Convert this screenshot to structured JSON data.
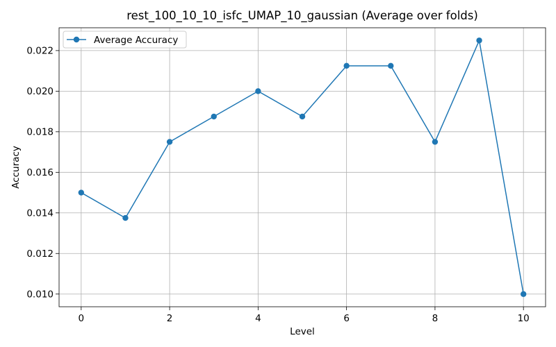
{
  "chart_data": {
    "type": "line",
    "title": "rest_100_10_10_isfc_UMAP_10_gaussian (Average over folds)",
    "xlabel": "Level",
    "ylabel": "Accuracy",
    "x": [
      0,
      1,
      2,
      3,
      4,
      5,
      6,
      7,
      8,
      9,
      10
    ],
    "series": [
      {
        "name": "Average Accuracy",
        "color": "#1f77b4",
        "marker": "circle",
        "values": [
          0.015,
          0.01375,
          0.0175,
          0.01875,
          0.02,
          0.01875,
          0.02125,
          0.02125,
          0.0175,
          0.0225,
          0.01
        ]
      }
    ],
    "xlim": [
      -0.5,
      10.5
    ],
    "ylim": [
      0.009375,
      0.023125
    ],
    "x_ticks": [
      "0",
      "2",
      "4",
      "6",
      "8",
      "10"
    ],
    "y_ticks": [
      "0.010",
      "0.012",
      "0.014",
      "0.016",
      "0.018",
      "0.020",
      "0.022"
    ],
    "grid": true,
    "grid_color": "#b0b0b0",
    "legend": "top-left"
  }
}
